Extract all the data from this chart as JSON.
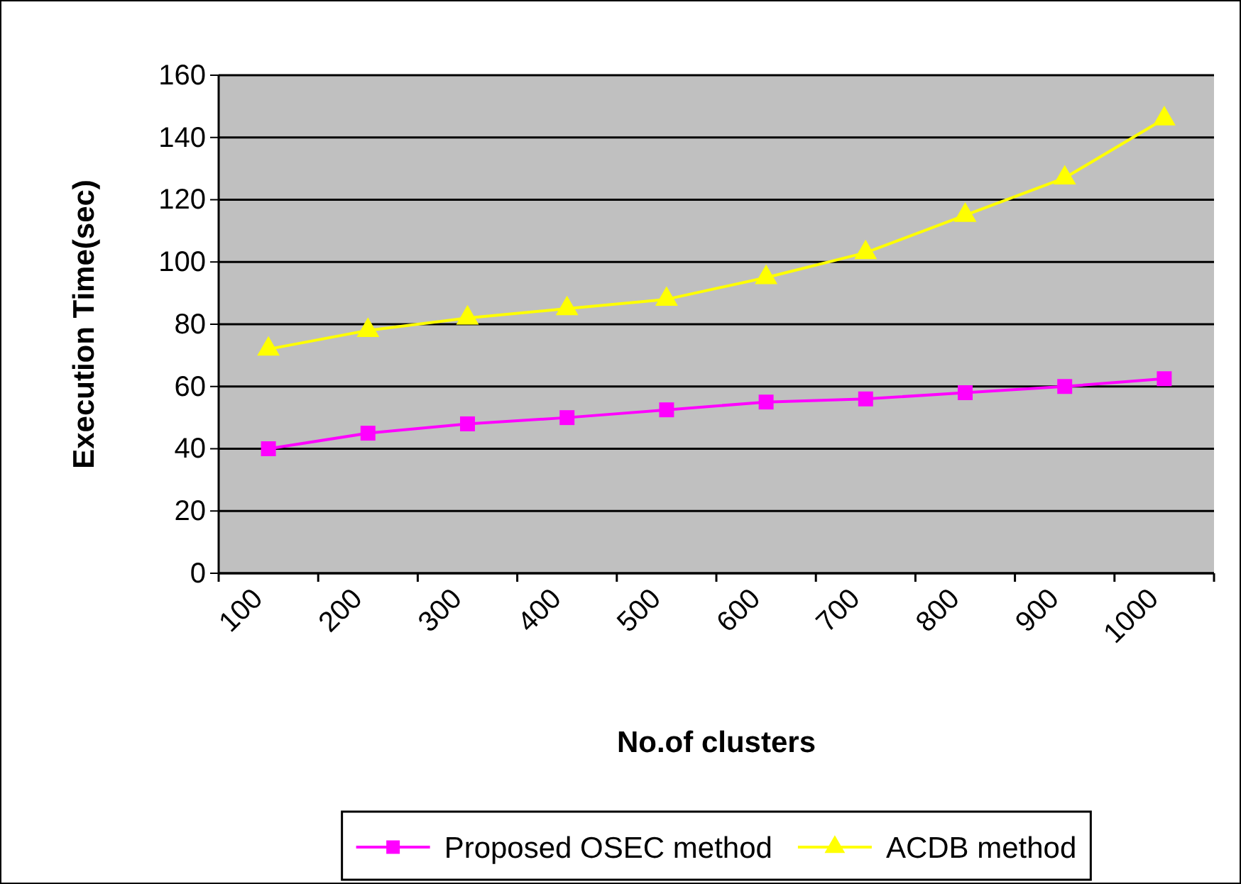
{
  "chart_data": {
    "type": "line",
    "xlabel": "No.of clusters",
    "ylabel": "Execution Time(sec)",
    "categories": [
      "100",
      "200",
      "300",
      "400",
      "500",
      "600",
      "700",
      "800",
      "900",
      "1000"
    ],
    "series": [
      {
        "name": "Proposed OSEC method",
        "color": "#ff00ff",
        "marker": "square",
        "values": [
          40,
          45,
          48,
          50,
          52.5,
          55,
          56,
          58,
          60,
          62.5
        ]
      },
      {
        "name": "ACDB method",
        "color": "#ffff00",
        "marker": "triangle",
        "values": [
          72,
          78,
          82,
          85,
          88,
          95,
          103,
          115,
          127,
          146
        ]
      }
    ],
    "ylim": [
      0,
      160
    ],
    "yticks": [
      0,
      20,
      40,
      60,
      80,
      100,
      120,
      140,
      160
    ],
    "grid": "y",
    "legend": "bottom"
  }
}
